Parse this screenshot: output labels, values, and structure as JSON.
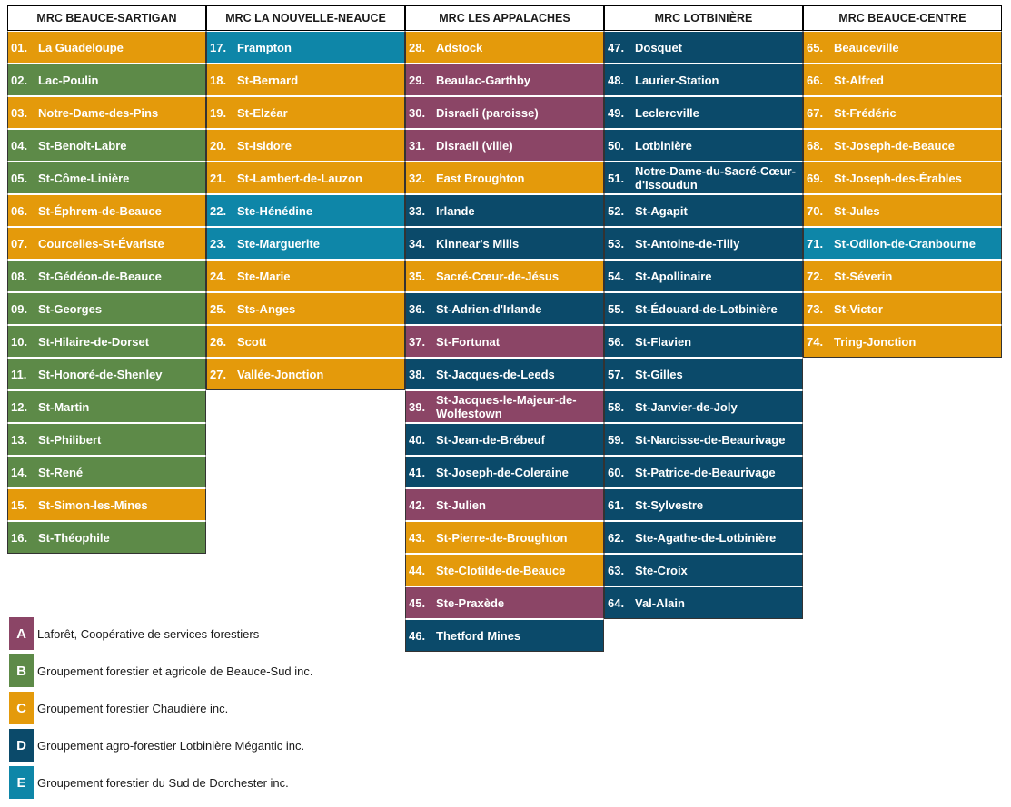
{
  "colors": {
    "A": "#8b4566",
    "B": "#5d8a48",
    "C": "#e49a0b",
    "D": "#0b4a6a",
    "E": "#0e86a8"
  },
  "columns": [
    {
      "header": "MRC BEAUCE-SARTIGAN",
      "rows": [
        {
          "num": "01.",
          "name": "La Guadeloupe",
          "g": "C"
        },
        {
          "num": "02.",
          "name": "Lac-Poulin",
          "g": "B"
        },
        {
          "num": "03.",
          "name": "Notre-Dame-des-Pins",
          "g": "C"
        },
        {
          "num": "04.",
          "name": "St-Benoît-Labre",
          "g": "B"
        },
        {
          "num": "05.",
          "name": "St-Côme-Linière",
          "g": "B"
        },
        {
          "num": "06.",
          "name": "St-Éphrem-de-Beauce",
          "g": "C"
        },
        {
          "num": "07.",
          "name": "Courcelles-St-Évariste",
          "g": "C"
        },
        {
          "num": "08.",
          "name": "St-Gédéon-de-Beauce",
          "g": "B"
        },
        {
          "num": "09.",
          "name": "St-Georges",
          "g": "B"
        },
        {
          "num": "10.",
          "name": "St-Hilaire-de-Dorset",
          "g": "B"
        },
        {
          "num": "11.",
          "name": "St-Honoré-de-Shenley",
          "g": "B"
        },
        {
          "num": "12.",
          "name": "St-Martin",
          "g": "B"
        },
        {
          "num": "13.",
          "name": "St-Philibert",
          "g": "B"
        },
        {
          "num": "14.",
          "name": "St-René",
          "g": "B"
        },
        {
          "num": "15.",
          "name": "St-Simon-les-Mines",
          "g": "C"
        },
        {
          "num": "16.",
          "name": "St-Théophile",
          "g": "B"
        }
      ]
    },
    {
      "header": "MRC LA NOUVELLE-NEAUCE",
      "rows": [
        {
          "num": "17.",
          "name": "Frampton",
          "g": "E"
        },
        {
          "num": "18.",
          "name": "St-Bernard",
          "g": "C"
        },
        {
          "num": "19.",
          "name": "St-Elzéar",
          "g": "C"
        },
        {
          "num": "20.",
          "name": "St-Isidore",
          "g": "C"
        },
        {
          "num": "21.",
          "name": "St-Lambert-de-Lauzon",
          "g": "C"
        },
        {
          "num": "22.",
          "name": "Ste-Hénédine",
          "g": "E"
        },
        {
          "num": "23.",
          "name": "Ste-Marguerite",
          "g": "E"
        },
        {
          "num": "24.",
          "name": "Ste-Marie",
          "g": "C"
        },
        {
          "num": "25.",
          "name": "Sts-Anges",
          "g": "C"
        },
        {
          "num": "26.",
          "name": "Scott",
          "g": "C"
        },
        {
          "num": "27.",
          "name": "Vallée-Jonction",
          "g": "C"
        }
      ]
    },
    {
      "header": "MRC LES APPALACHES",
      "rows": [
        {
          "num": "28.",
          "name": "Adstock",
          "g": "C"
        },
        {
          "num": "29.",
          "name": "Beaulac-Garthby",
          "g": "A"
        },
        {
          "num": "30.",
          "name": "Disraeli (paroisse)",
          "g": "A"
        },
        {
          "num": "31.",
          "name": "Disraeli (ville)",
          "g": "A"
        },
        {
          "num": "32.",
          "name": "East Broughton",
          "g": "C"
        },
        {
          "num": "33.",
          "name": "Irlande",
          "g": "D"
        },
        {
          "num": "34.",
          "name": "Kinnear's Mills",
          "g": "D"
        },
        {
          "num": "35.",
          "name": "Sacré-Cœur-de-Jésus",
          "g": "C"
        },
        {
          "num": "36.",
          "name": "St-Adrien-d'Irlande",
          "g": "D"
        },
        {
          "num": "37.",
          "name": "St-Fortunat",
          "g": "A"
        },
        {
          "num": "38.",
          "name": "St-Jacques-de-Leeds",
          "g": "D"
        },
        {
          "num": "39.",
          "name": "St-Jacques-le-Majeur-de-Wolfestown",
          "g": "A"
        },
        {
          "num": "40.",
          "name": "St-Jean-de-Brébeuf",
          "g": "D"
        },
        {
          "num": "41.",
          "name": "St-Joseph-de-Coleraine",
          "g": "D"
        },
        {
          "num": "42.",
          "name": "St-Julien",
          "g": "A"
        },
        {
          "num": "43.",
          "name": "St-Pierre-de-Broughton",
          "g": "C"
        },
        {
          "num": "44.",
          "name": "Ste-Clotilde-de-Beauce",
          "g": "C"
        },
        {
          "num": "45.",
          "name": "Ste-Praxède",
          "g": "A"
        },
        {
          "num": "46.",
          "name": "Thetford Mines",
          "g": "D"
        }
      ]
    },
    {
      "header": "MRC LOTBINIÈRE",
      "rows": [
        {
          "num": "47.",
          "name": "Dosquet",
          "g": "D"
        },
        {
          "num": "48.",
          "name": "Laurier-Station",
          "g": "D"
        },
        {
          "num": "49.",
          "name": "Leclercville",
          "g": "D"
        },
        {
          "num": "50.",
          "name": "Lotbinière",
          "g": "D"
        },
        {
          "num": "51.",
          "name": "Notre-Dame-du-Sacré-Cœur-d'Issoudun",
          "g": "D"
        },
        {
          "num": "52.",
          "name": "St-Agapit",
          "g": "D"
        },
        {
          "num": "53.",
          "name": "St-Antoine-de-Tilly",
          "g": "D"
        },
        {
          "num": "54.",
          "name": "St-Apollinaire",
          "g": "D"
        },
        {
          "num": "55.",
          "name": "St-Édouard-de-Lotbinière",
          "g": "D"
        },
        {
          "num": "56.",
          "name": "St-Flavien",
          "g": "D"
        },
        {
          "num": "57.",
          "name": "St-Gilles",
          "g": "D"
        },
        {
          "num": "58.",
          "name": "St-Janvier-de-Joly",
          "g": "D"
        },
        {
          "num": "59.",
          "name": "St-Narcisse-de-Beaurivage",
          "g": "D"
        },
        {
          "num": "60.",
          "name": "St-Patrice-de-Beaurivage",
          "g": "D"
        },
        {
          "num": "61.",
          "name": "St-Sylvestre",
          "g": "D"
        },
        {
          "num": "62.",
          "name": "Ste-Agathe-de-Lotbinière",
          "g": "D"
        },
        {
          "num": "63.",
          "name": "Ste-Croix",
          "g": "D"
        },
        {
          "num": "64.",
          "name": "Val-Alain",
          "g": "D"
        }
      ]
    },
    {
      "header": "MRC BEAUCE-CENTRE",
      "rows": [
        {
          "num": "65.",
          "name": "Beauceville",
          "g": "C"
        },
        {
          "num": "66.",
          "name": "St-Alfred",
          "g": "C"
        },
        {
          "num": "67.",
          "name": "St-Frédéric",
          "g": "C"
        },
        {
          "num": "68.",
          "name": "St-Joseph-de-Beauce",
          "g": "C"
        },
        {
          "num": "69.",
          "name": "St-Joseph-des-Érables",
          "g": "C"
        },
        {
          "num": "70.",
          "name": "St-Jules",
          "g": "C"
        },
        {
          "num": "71.",
          "name": "St-Odilon-de-Cranbourne",
          "g": "E"
        },
        {
          "num": "72.",
          "name": "St-Séverin",
          "g": "C"
        },
        {
          "num": "73.",
          "name": "St-Victor",
          "g": "C"
        },
        {
          "num": "74.",
          "name": "Tring-Jonction",
          "g": "C"
        }
      ]
    }
  ],
  "legend": [
    {
      "key": "A",
      "label": "Laforêt, Coopérative de services forestiers"
    },
    {
      "key": "B",
      "label": "Groupement forestier et agricole de Beauce-Sud inc."
    },
    {
      "key": "C",
      "label": "Groupement forestier Chaudière inc."
    },
    {
      "key": "D",
      "label": "Groupement agro-forestier Lotbinière Mégantic inc."
    },
    {
      "key": "E",
      "label": "Groupement forestier du Sud de Dorchester inc."
    }
  ]
}
